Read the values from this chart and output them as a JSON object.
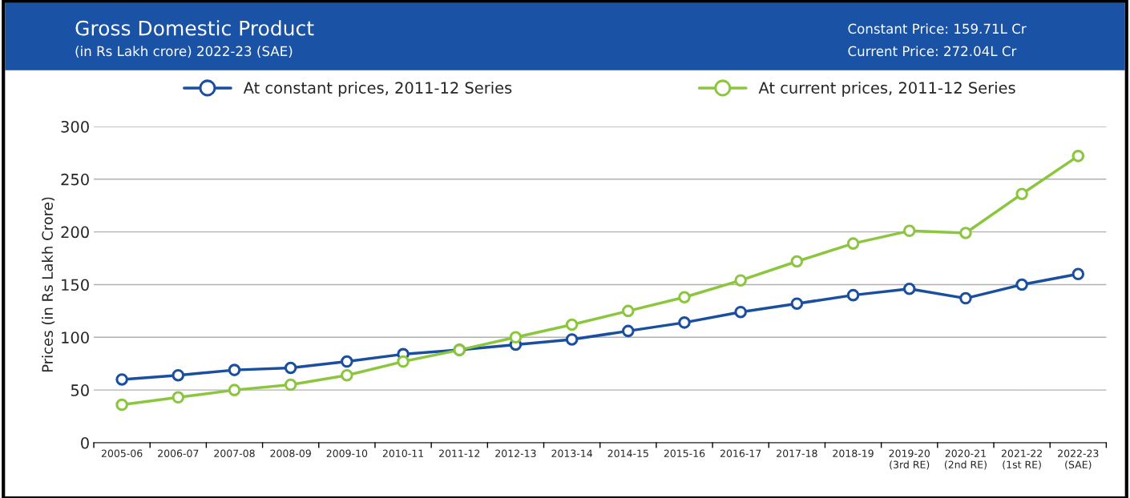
{
  "chart_data": {
    "type": "line",
    "title": "Gross Domestic Product",
    "subtitle": "(in Rs Lakh crore) 2022-23 (SAE)",
    "annotations": [
      "Constant Price: 159.71L Cr",
      "Current Price: 272.04L Cr"
    ],
    "ylabel": "Prices (in Rs Lakh Crore)",
    "categories": [
      "2005-06",
      "2006-07",
      "2007-08",
      "2008-09",
      "2009-10",
      "2010-11",
      "2011-12",
      "2012-13",
      "2013-14",
      "2014-15",
      "2015-16",
      "2016-17",
      "2017-18",
      "2018-19",
      "2019-20\n(3rd RE)",
      "2020-21\n(2nd RE)",
      "2021-22\n(1st RE)",
      "2022-23\n(SAE)"
    ],
    "series": [
      {
        "name": "At constant prices, 2011-12 Series",
        "color": "#1a4fa0",
        "values": [
          60,
          64,
          69,
          71,
          77,
          84,
          88,
          93,
          98,
          106,
          114,
          124,
          132,
          140,
          146,
          137,
          150,
          160
        ]
      },
      {
        "name": "At current prices, 2011-12 Series",
        "color": "#8cc63f",
        "values": [
          36,
          43,
          50,
          55,
          64,
          77,
          88,
          100,
          112,
          125,
          138,
          154,
          172,
          189,
          201,
          199,
          236,
          272
        ]
      }
    ],
    "ylim": [
      0,
      300
    ],
    "yticks": [
      0,
      50,
      100,
      150,
      200,
      250,
      300
    ],
    "grid": "y",
    "legend": "top",
    "marker": "circle",
    "line_style": "solid"
  }
}
